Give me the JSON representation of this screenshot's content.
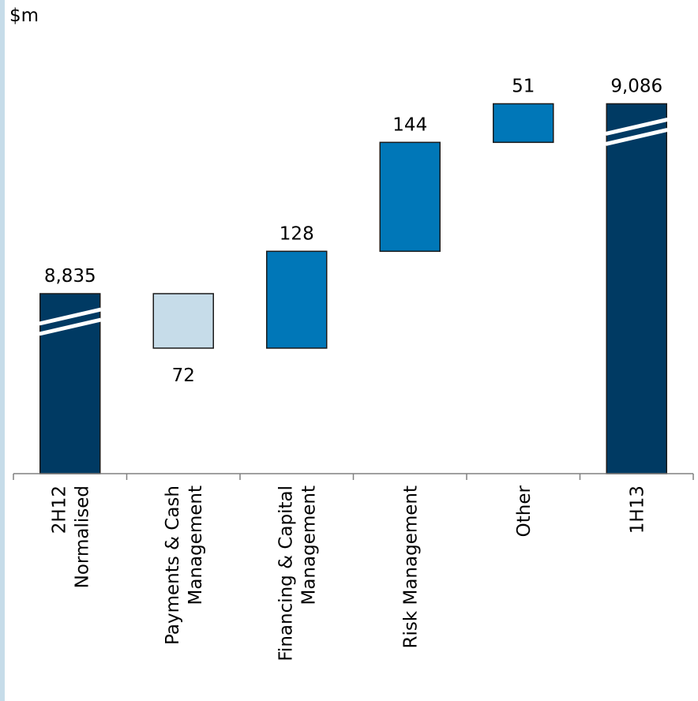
{
  "chart_data": {
    "type": "bar",
    "variant": "waterfall",
    "ylabel": "$m",
    "categories": [
      [
        "2H12",
        "Normalised"
      ],
      [
        "Payments & Cash",
        "Management"
      ],
      [
        "Financing & Capital",
        "Management"
      ],
      [
        "Risk Management"
      ],
      [
        "Other"
      ],
      [
        "1H13"
      ]
    ],
    "bars": [
      {
        "kind": "total",
        "value": 8835,
        "label": "8,835",
        "label_pos": "above",
        "axis_break": true
      },
      {
        "kind": "decrease",
        "value": -72,
        "label": "72",
        "label_pos": "below"
      },
      {
        "kind": "increase",
        "value": 128,
        "label": "128",
        "label_pos": "above"
      },
      {
        "kind": "increase",
        "value": 144,
        "label": "144",
        "label_pos": "above"
      },
      {
        "kind": "increase",
        "value": 51,
        "label": "51",
        "label_pos": "above"
      },
      {
        "kind": "total",
        "value": 9086,
        "label": "9,086",
        "label_pos": "above",
        "axis_break": true
      }
    ],
    "colors": {
      "total": "#003a63",
      "increase": "#0077b8",
      "decrease": "#c6dce9",
      "edge": "#1a1a1a",
      "axis": "#808080",
      "accent_strip": "#c6dce9"
    },
    "grid": false,
    "legend": "none"
  }
}
